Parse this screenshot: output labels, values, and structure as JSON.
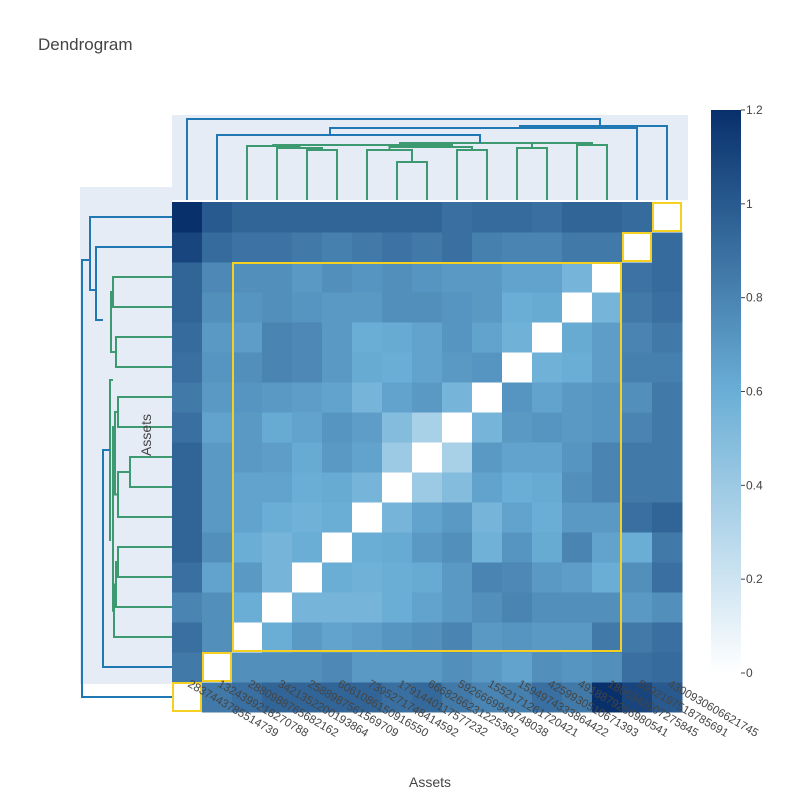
{
  "chart_data": {
    "type": "heatmap",
    "title": "Dendrogram",
    "xlabel": "Assets",
    "ylabel": "Assets",
    "labels": [
      "2837443785514739",
      "1324399218270788",
      "2880988765682162",
      "3421352200193864",
      "2588987561569709",
      "6061086150916550",
      "7395271748414592",
      "1791440117577232",
      "6668266231225362",
      "5926669943748038",
      "1552171261720421",
      "1594974333864422",
      "4259930510671393",
      "4918879256980541",
      "1806342607275845",
      "5992197518785691",
      "4300930606621745"
    ],
    "matrix": [
      [
        0.0,
        0.85,
        0.9,
        0.95,
        0.95,
        0.95,
        0.95,
        0.9,
        0.93,
        0.85,
        0.8,
        0.82,
        0.9,
        0.85,
        1.2,
        1.1,
        1.0
      ],
      [
        0.85,
        0.0,
        0.75,
        0.75,
        0.75,
        0.78,
        0.7,
        0.7,
        0.7,
        0.75,
        0.7,
        0.65,
        0.75,
        0.72,
        0.75,
        0.9,
        0.92
      ],
      [
        0.9,
        0.75,
        0.0,
        0.6,
        0.7,
        0.65,
        0.68,
        0.72,
        0.75,
        0.8,
        0.7,
        0.72,
        0.7,
        0.7,
        0.85,
        0.85,
        0.9
      ],
      [
        0.8,
        0.75,
        0.6,
        0.0,
        0.55,
        0.55,
        0.55,
        0.6,
        0.65,
        0.7,
        0.75,
        0.8,
        0.75,
        0.75,
        0.75,
        0.7,
        0.75
      ],
      [
        0.9,
        0.65,
        0.7,
        0.55,
        0.0,
        0.6,
        0.58,
        0.6,
        0.62,
        0.7,
        0.8,
        0.78,
        0.7,
        0.68,
        0.6,
        0.75,
        0.9
      ],
      [
        0.95,
        0.75,
        0.6,
        0.55,
        0.6,
        0.0,
        0.6,
        0.62,
        0.7,
        0.75,
        0.58,
        0.72,
        0.62,
        0.8,
        0.65,
        0.6,
        0.85
      ],
      [
        0.95,
        0.7,
        0.65,
        0.6,
        0.58,
        0.6,
        0.0,
        0.55,
        0.65,
        0.7,
        0.55,
        0.65,
        0.6,
        0.7,
        0.7,
        0.9,
        0.95
      ],
      [
        0.95,
        0.7,
        0.65,
        0.65,
        0.6,
        0.62,
        0.55,
        0.0,
        0.4,
        0.5,
        0.65,
        0.6,
        0.62,
        0.75,
        0.8,
        0.85,
        0.85
      ],
      [
        0.95,
        0.7,
        0.7,
        0.68,
        0.62,
        0.7,
        0.65,
        0.4,
        0.0,
        0.35,
        0.7,
        0.65,
        0.65,
        0.72,
        0.8,
        0.85,
        0.85
      ],
      [
        0.9,
        0.65,
        0.7,
        0.62,
        0.65,
        0.72,
        0.68,
        0.5,
        0.35,
        0.0,
        0.55,
        0.7,
        0.72,
        0.7,
        0.72,
        0.8,
        0.85
      ],
      [
        0.85,
        0.7,
        0.72,
        0.7,
        0.68,
        0.65,
        0.55,
        0.65,
        0.7,
        0.55,
        0.0,
        0.72,
        0.65,
        0.7,
        0.72,
        0.75,
        0.85
      ],
      [
        0.9,
        0.72,
        0.75,
        0.8,
        0.78,
        0.7,
        0.62,
        0.6,
        0.65,
        0.7,
        0.72,
        0.0,
        0.58,
        0.6,
        0.68,
        0.82,
        0.82
      ],
      [
        0.92,
        0.7,
        0.68,
        0.8,
        0.78,
        0.7,
        0.6,
        0.62,
        0.65,
        0.72,
        0.65,
        0.58,
        0.0,
        0.62,
        0.68,
        0.8,
        0.85
      ],
      [
        0.95,
        0.75,
        0.72,
        0.75,
        0.72,
        0.7,
        0.7,
        0.75,
        0.75,
        0.72,
        0.7,
        0.6,
        0.62,
        0.0,
        0.55,
        0.85,
        0.9
      ],
      [
        0.95,
        0.78,
        0.75,
        0.75,
        0.7,
        0.75,
        0.72,
        0.75,
        0.72,
        0.7,
        0.7,
        0.65,
        0.65,
        0.55,
        0.0,
        0.88,
        0.92
      ],
      [
        1.1,
        0.92,
        0.88,
        0.88,
        0.85,
        0.82,
        0.85,
        0.88,
        0.85,
        0.9,
        0.82,
        0.8,
        0.8,
        0.85,
        0.85,
        0.0,
        0.92
      ],
      [
        1.2,
        1.0,
        0.95,
        0.95,
        0.95,
        0.95,
        0.95,
        0.95,
        0.95,
        0.9,
        0.92,
        0.92,
        0.9,
        0.95,
        0.95,
        0.92,
        0.0
      ]
    ],
    "colorbar": {
      "range": [
        0,
        1.2
      ],
      "ticks": [
        "0",
        "0.2",
        "0.4",
        "0.6",
        "0.8",
        "1",
        "1.2"
      ],
      "colors": [
        "#ffffff",
        "#6aaed6",
        "#08306b"
      ]
    },
    "highlight_boxes": [
      {
        "start": 0,
        "end": 0
      },
      {
        "start": 1,
        "end": 1
      },
      {
        "start": 2,
        "end": 14
      },
      {
        "start": 15,
        "end": 15
      },
      {
        "start": 16,
        "end": 16
      }
    ],
    "highlight_color": "#f5d020",
    "dendrogram_colors": [
      "#1f77b4",
      "#3d9970"
    ]
  }
}
